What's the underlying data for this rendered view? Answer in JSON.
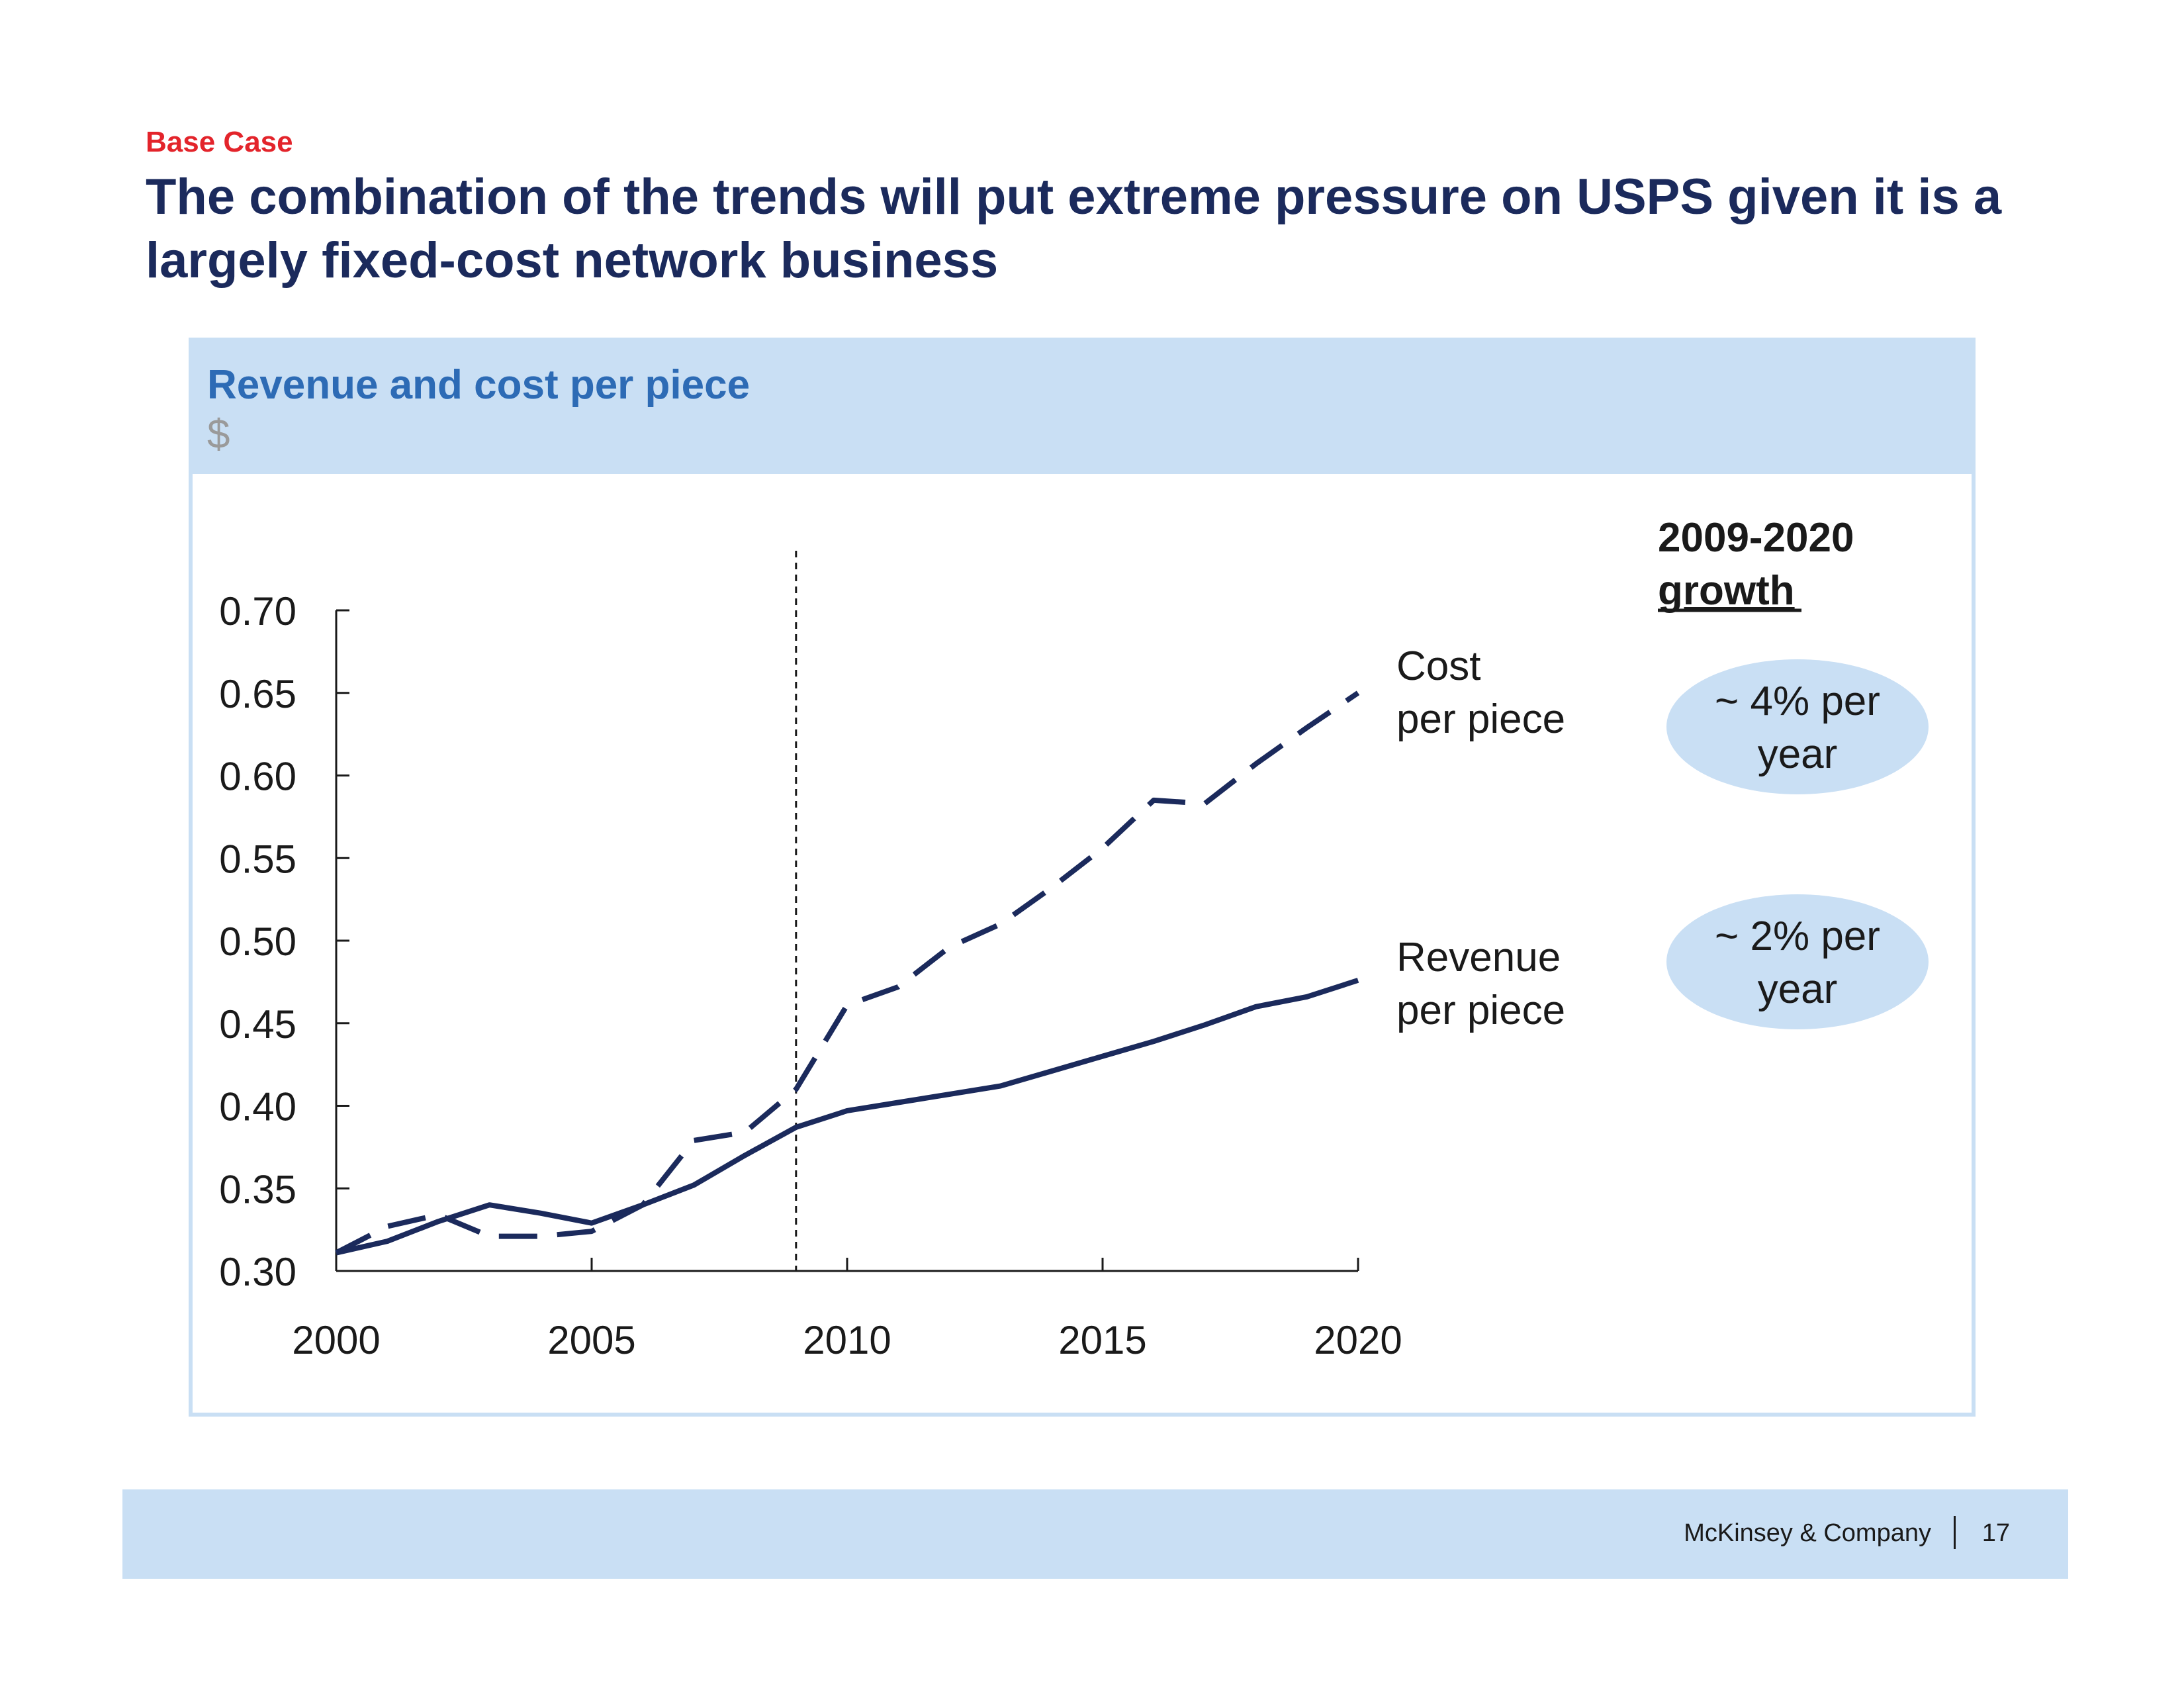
{
  "slide": {
    "tag": "Base Case",
    "headline": "The combination of the trends will put extreme pressure on USPS given it is a largely fixed-cost network business",
    "footer_brand": "McKinsey & Company",
    "page_number": "17"
  },
  "panel": {
    "title": "Revenue and cost per piece",
    "unit": "$"
  },
  "chart_data": {
    "type": "line",
    "title": "Revenue and cost per piece",
    "ylabel": "$",
    "xlabel": "",
    "xlim": [
      2000,
      2020
    ],
    "ylim": [
      0.3,
      0.7
    ],
    "x_ticks": [
      "2000",
      "2005",
      "2010",
      "2015",
      "2020"
    ],
    "y_ticks": [
      "0.30",
      "0.35",
      "0.40",
      "0.45",
      "0.50",
      "0.55",
      "0.60",
      "0.65",
      "0.70"
    ],
    "reference_line_x": 2009,
    "series": [
      {
        "name": "Cost per piece",
        "label_lines": [
          "Cost",
          "per piece"
        ],
        "style": "dashed",
        "color": "#1b2a5c",
        "x": [
          2000,
          2001,
          2002,
          2003,
          2004,
          2005,
          2006,
          2007,
          2008,
          2009,
          2010,
          2011,
          2012,
          2013,
          2014,
          2015,
          2016,
          2017,
          2018,
          2019,
          2020
        ],
        "values": [
          0.311,
          0.327,
          0.334,
          0.321,
          0.321,
          0.324,
          0.34,
          0.379,
          0.384,
          0.41,
          0.461,
          0.472,
          0.496,
          0.51,
          0.532,
          0.556,
          0.585,
          0.583,
          0.607,
          0.629,
          0.65
        ]
      },
      {
        "name": "Revenue per piece",
        "label_lines": [
          "Revenue",
          "per piece"
        ],
        "style": "solid",
        "color": "#1b2a5c",
        "x": [
          2000,
          2001,
          2002,
          2003,
          2004,
          2005,
          2006,
          2007,
          2008,
          2009,
          2010,
          2011,
          2012,
          2013,
          2014,
          2015,
          2016,
          2017,
          2018,
          2019,
          2020
        ],
        "values": [
          0.311,
          0.318,
          0.33,
          0.34,
          0.335,
          0.329,
          0.34,
          0.352,
          0.37,
          0.387,
          0.397,
          0.402,
          0.407,
          0.412,
          0.421,
          0.43,
          0.439,
          0.449,
          0.46,
          0.466,
          0.476
        ]
      }
    ],
    "growth_header_lines": [
      "2009-2020",
      "growth"
    ],
    "growth_badges": [
      {
        "series": "Cost per piece",
        "lines": [
          "~ 4% per",
          "year"
        ]
      },
      {
        "series": "Revenue per piece",
        "lines": [
          "~ 2% per",
          "year"
        ]
      }
    ],
    "colors": {
      "line": "#1b2a5c",
      "badge": "#c9dff4",
      "axis": "#1a1a1a"
    }
  }
}
